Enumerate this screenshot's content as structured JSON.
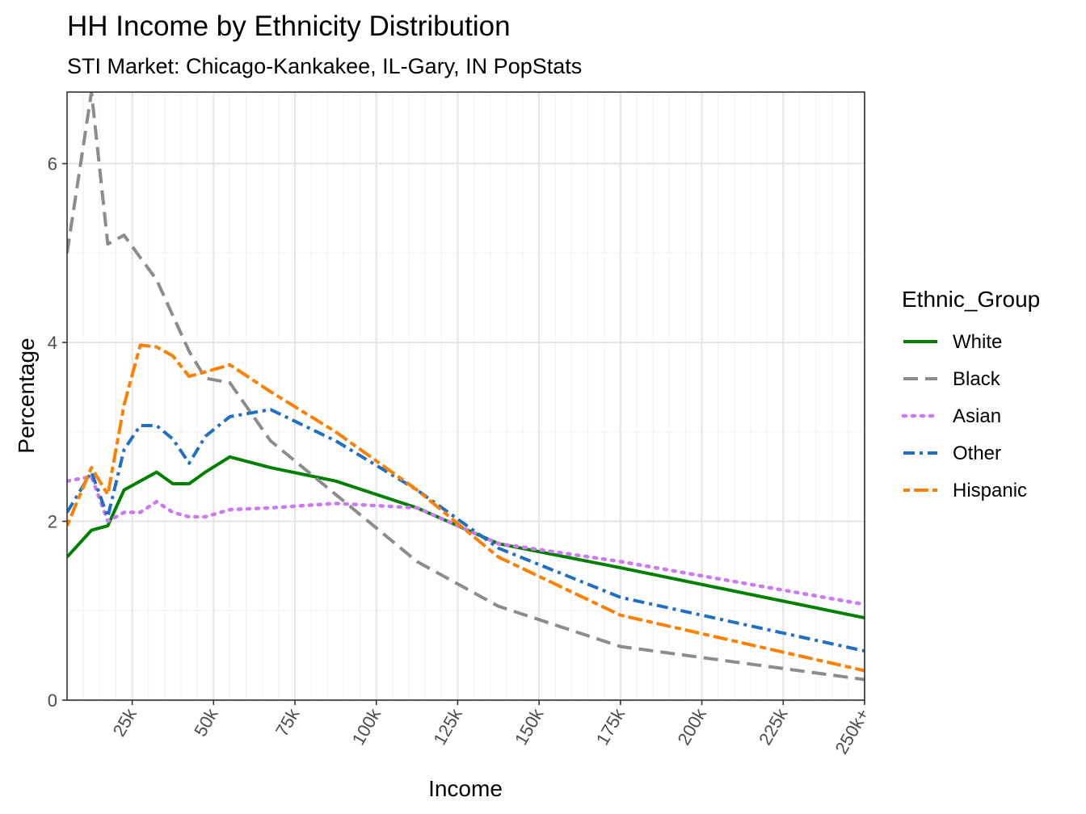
{
  "chart_data": {
    "type": "line",
    "title": "HH Income by Ethnicity Distribution",
    "subtitle": "STI Market: Chicago-Kankakee, IL-Gary, IN PopStats",
    "xlabel": "Income",
    "ylabel": "Percentage",
    "xlim": [
      5000,
      250000
    ],
    "ylim": [
      0,
      6.8
    ],
    "x_ticks": [
      {
        "value": 25000,
        "label": "25k"
      },
      {
        "value": 50000,
        "label": "50k"
      },
      {
        "value": 75000,
        "label": "75k"
      },
      {
        "value": 100000,
        "label": "100k"
      },
      {
        "value": 125000,
        "label": "125k"
      },
      {
        "value": 150000,
        "label": "150k"
      },
      {
        "value": 175000,
        "label": "175k"
      },
      {
        "value": 200000,
        "label": "200k"
      },
      {
        "value": 225000,
        "label": "225k"
      },
      {
        "value": 250000,
        "label": "250k+"
      }
    ],
    "y_ticks": [
      {
        "value": 0,
        "label": "0"
      },
      {
        "value": 2,
        "label": "2"
      },
      {
        "value": 4,
        "label": "4"
      },
      {
        "value": 6,
        "label": "6"
      }
    ],
    "grid": true,
    "legend_title": "Ethnic_Group",
    "legend_position": "right",
    "series": [
      {
        "name": "White",
        "color": "#008000",
        "dash": "solid",
        "points": [
          [
            5000,
            1.6
          ],
          [
            12500,
            1.9
          ],
          [
            17500,
            1.95
          ],
          [
            22500,
            2.35
          ],
          [
            27500,
            2.45
          ],
          [
            32500,
            2.55
          ],
          [
            37500,
            2.42
          ],
          [
            42500,
            2.42
          ],
          [
            47500,
            2.55
          ],
          [
            55000,
            2.72
          ],
          [
            67500,
            2.6
          ],
          [
            87500,
            2.45
          ],
          [
            112500,
            2.15
          ],
          [
            137500,
            1.75
          ],
          [
            175000,
            1.48
          ],
          [
            250000,
            0.92
          ]
        ]
      },
      {
        "name": "Black",
        "color": "#8c8c8c",
        "dash": "longdash",
        "points": [
          [
            5000,
            5.0
          ],
          [
            12500,
            6.8
          ],
          [
            17500,
            5.1
          ],
          [
            22500,
            5.2
          ],
          [
            27500,
            4.95
          ],
          [
            32500,
            4.7
          ],
          [
            37500,
            4.3
          ],
          [
            42500,
            3.9
          ],
          [
            47500,
            3.6
          ],
          [
            55000,
            3.55
          ],
          [
            67500,
            2.9
          ],
          [
            87500,
            2.3
          ],
          [
            112500,
            1.55
          ],
          [
            137500,
            1.05
          ],
          [
            175000,
            0.6
          ],
          [
            250000,
            0.23
          ]
        ]
      },
      {
        "name": "Asian",
        "color": "#cc79f2",
        "dash": "dotted",
        "points": [
          [
            5000,
            2.45
          ],
          [
            12500,
            2.5
          ],
          [
            17500,
            2.0
          ],
          [
            22500,
            2.1
          ],
          [
            27500,
            2.1
          ],
          [
            32500,
            2.22
          ],
          [
            37500,
            2.1
          ],
          [
            42500,
            2.05
          ],
          [
            47500,
            2.05
          ],
          [
            55000,
            2.13
          ],
          [
            67500,
            2.15
          ],
          [
            87500,
            2.2
          ],
          [
            112500,
            2.15
          ],
          [
            137500,
            1.75
          ],
          [
            175000,
            1.55
          ],
          [
            250000,
            1.07
          ]
        ]
      },
      {
        "name": "Other",
        "color": "#1f6fc5",
        "dash": "dashdot",
        "points": [
          [
            5000,
            2.1
          ],
          [
            12500,
            2.55
          ],
          [
            17500,
            2.05
          ],
          [
            22500,
            2.8
          ],
          [
            27500,
            3.07
          ],
          [
            32500,
            3.07
          ],
          [
            37500,
            2.92
          ],
          [
            42500,
            2.65
          ],
          [
            47500,
            2.95
          ],
          [
            55000,
            3.17
          ],
          [
            67500,
            3.25
          ],
          [
            87500,
            2.9
          ],
          [
            112500,
            2.35
          ],
          [
            137500,
            1.7
          ],
          [
            175000,
            1.15
          ],
          [
            250000,
            0.55
          ]
        ]
      },
      {
        "name": "Hispanic",
        "color": "#ff7f00",
        "dash": "twodash",
        "points": [
          [
            5000,
            1.95
          ],
          [
            12500,
            2.6
          ],
          [
            17500,
            2.3
          ],
          [
            22500,
            3.3
          ],
          [
            27500,
            3.97
          ],
          [
            32500,
            3.95
          ],
          [
            37500,
            3.85
          ],
          [
            42500,
            3.62
          ],
          [
            47500,
            3.67
          ],
          [
            55000,
            3.75
          ],
          [
            67500,
            3.45
          ],
          [
            87500,
            3.0
          ],
          [
            112500,
            2.35
          ],
          [
            137500,
            1.6
          ],
          [
            175000,
            0.95
          ],
          [
            250000,
            0.33
          ]
        ]
      }
    ]
  }
}
